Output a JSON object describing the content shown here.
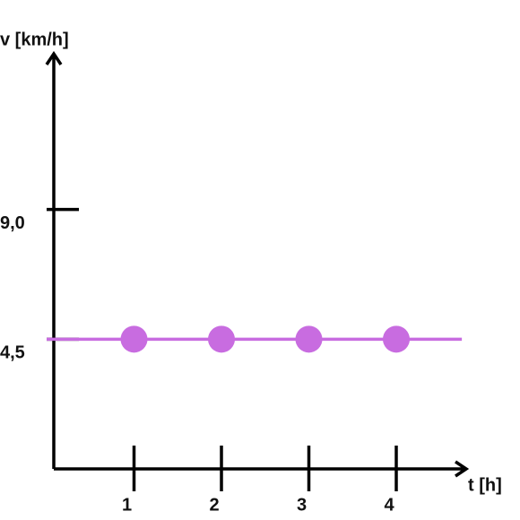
{
  "chart_data": {
    "type": "line",
    "ylabel": "v [km/h]",
    "xlabel": "t [h]",
    "xlim": [
      0,
      4.8
    ],
    "ylim": [
      0,
      14.4
    ],
    "xticks": [
      1,
      2,
      3,
      4
    ],
    "yticks": [
      {
        "value": 4.5,
        "label": "4,5"
      },
      {
        "value": 9,
        "label": "9,0"
      }
    ],
    "line": {
      "color": "#c86ce0",
      "x": [
        0,
        4.75
      ],
      "values": [
        4.5,
        4.5
      ]
    },
    "points": {
      "color": "#c86ce0",
      "x": [
        1,
        2,
        3,
        4
      ],
      "values": [
        4.5,
        4.5,
        4.5,
        4.5
      ]
    }
  }
}
